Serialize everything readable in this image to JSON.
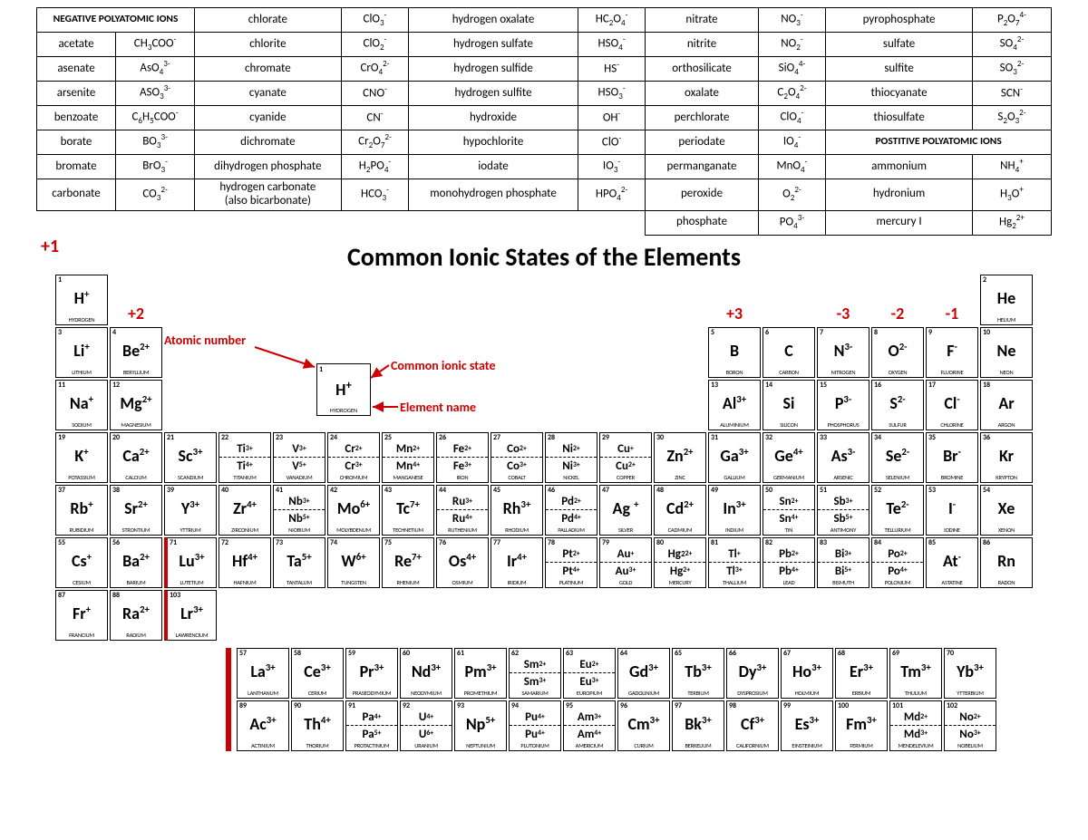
{
  "colors": {
    "accent": "#cc0000",
    "border": "#000000",
    "background": "#ffffff"
  },
  "poly_header_neg": "NEGATIVE POLYATOMIC IONS",
  "poly_header_pos": "POSTITIVE POLYATOMIC IONS",
  "poly": {
    "c1": [
      [
        "acetate",
        "CH<sub>3</sub>COO<sup>-</sup>"
      ],
      [
        "asenate",
        "AsO<sub>4</sub><sup>3-</sup>"
      ],
      [
        "arsenite",
        "ASO<sub>3</sub><sup>3-</sup>"
      ],
      [
        "benzoate",
        "C<sub>6</sub>H<sub>5</sub>COO<sup>-</sup>"
      ],
      [
        "borate",
        "BO<sub>3</sub><sup>3-</sup>"
      ],
      [
        "bromate",
        "BrO<sub>3</sub><sup>-</sup>"
      ],
      [
        "carbonate",
        "CO<sub>3</sub><sup>2-</sup>"
      ]
    ],
    "c2": [
      [
        "chlorate",
        "ClO<sub>3</sub><sup>-</sup>"
      ],
      [
        "chlorite",
        "ClO<sub>2</sub><sup>-</sup>"
      ],
      [
        "chromate",
        "CrO<sub>4</sub><sup>2-</sup>"
      ],
      [
        "cyanate",
        "CNO<sup>-</sup>"
      ],
      [
        "cyanide",
        "CN<sup>-</sup>"
      ],
      [
        "dichromate",
        "Cr<sub>2</sub>O<sub>7</sub><sup>2-</sup>"
      ],
      [
        "dihydrogen phosphate",
        "H<sub>2</sub>PO<sub>4</sub><sup>-</sup>"
      ],
      [
        "hydrogen carbonate<br>(also bicarbonate)",
        "HCO<sub>3</sub><sup>-</sup>"
      ]
    ],
    "c3": [
      [
        "hydrogen oxalate",
        "HC<sub>2</sub>O<sub>4</sub><sup>-</sup>"
      ],
      [
        "hydrogen sulfate",
        "HSO<sub>4</sub><sup>-</sup>"
      ],
      [
        "hydrogen sulfide",
        "HS<sup>-</sup>"
      ],
      [
        "hydrogen sulfite",
        "HSO<sub>3</sub><sup>-</sup>"
      ],
      [
        "hydroxide",
        "OH<sup>-</sup>"
      ],
      [
        "hypochlorite",
        "ClO<sup>-</sup>"
      ],
      [
        "iodate",
        "IO<sub>3</sub><sup>-</sup>"
      ],
      [
        "monohydrogen phosphate",
        "HPO<sub>4</sub><sup>2-</sup>"
      ]
    ],
    "c4": [
      [
        "nitrate",
        "NO<sub>3</sub><sup>-</sup>"
      ],
      [
        "nitrite",
        "NO<sub>2</sub><sup>-</sup>"
      ],
      [
        "orthosilicate",
        "SiO<sub>4</sub><sup>4-</sup>"
      ],
      [
        "oxalate",
        "C<sub>2</sub>O<sub>4</sub><sup>2-</sup>"
      ],
      [
        "perchlorate",
        "ClO<sub>4</sub><sup>-</sup>"
      ],
      [
        "periodate",
        "IO<sub>4</sub><sup>-</sup>"
      ],
      [
        "permanganate",
        "MnO<sub>4</sub><sup>-</sup>"
      ],
      [
        "peroxide",
        "O<sub>2</sub><sup>2-</sup>"
      ],
      [
        "phosphate",
        "PO<sub>4</sub><sup>3-</sup>"
      ]
    ],
    "c5": [
      [
        "pyrophosphate",
        "P<sub>2</sub>O<sub>7</sub><sup>4-</sup>"
      ],
      [
        "sulfate",
        "SO<sub>4</sub><sup>2-</sup>"
      ],
      [
        "sulfite",
        "SO<sub>3</sub><sup>2-</sup>"
      ],
      [
        "thiocyanate",
        "SCN<sup>-</sup>"
      ],
      [
        "thiosulfate",
        "S<sub>2</sub>O<sub>3</sub><sup>2-</sup>"
      ]
    ],
    "c6": [
      [
        "ammonium",
        "NH<sub>4</sub><sup>+</sup>"
      ],
      [
        "hydronium",
        "H<sub>3</sub>O<sup>+</sup>"
      ],
      [
        "mercury I",
        "Hg<sub>2</sub><sup>2+</sup>"
      ]
    ]
  },
  "title": "Common Ionic States of the Elements",
  "legend": {
    "atomic_number": "Atomic number",
    "ionic_state": "Common ionic state",
    "element_name": "Element name",
    "key_num": "1",
    "key_sym": "H<sup>+</sup>",
    "key_name": "HYDROGEN"
  },
  "group_labels": {
    "c1": "+1",
    "c2": "+2",
    "c13": "+3",
    "c15": "-3",
    "c16": "-2",
    "c17": "-1"
  },
  "elements": [
    {
      "r": 1,
      "c": 1,
      "n": "1",
      "name": "HYDROGEN",
      "ions": [
        "H<sup>+</sup>"
      ]
    },
    {
      "r": 1,
      "c": 18,
      "n": "2",
      "name": "HELIUM",
      "ions": [
        "He"
      ]
    },
    {
      "r": 2,
      "c": 1,
      "n": "3",
      "name": "LITHIUM",
      "ions": [
        "Li<sup>+</sup>"
      ]
    },
    {
      "r": 2,
      "c": 2,
      "n": "4",
      "name": "BERYLLIUM",
      "ions": [
        "Be<sup>2+</sup>"
      ]
    },
    {
      "r": 2,
      "c": 13,
      "n": "5",
      "name": "BORON",
      "ions": [
        "B"
      ]
    },
    {
      "r": 2,
      "c": 14,
      "n": "6",
      "name": "CARBON",
      "ions": [
        "C"
      ]
    },
    {
      "r": 2,
      "c": 15,
      "n": "7",
      "name": "NITROGEN",
      "ions": [
        "N<sup>3-</sup>"
      ]
    },
    {
      "r": 2,
      "c": 16,
      "n": "8",
      "name": "OXYGEN",
      "ions": [
        "O<sup>2-</sup>"
      ]
    },
    {
      "r": 2,
      "c": 17,
      "n": "9",
      "name": "FLUORINE",
      "ions": [
        "F<sup>-</sup>"
      ]
    },
    {
      "r": 2,
      "c": 18,
      "n": "10",
      "name": "NEON",
      "ions": [
        "Ne"
      ]
    },
    {
      "r": 3,
      "c": 1,
      "n": "11",
      "name": "SODIUM",
      "ions": [
        "Na<sup>+</sup>"
      ]
    },
    {
      "r": 3,
      "c": 2,
      "n": "12",
      "name": "MAGNESIUM",
      "ions": [
        "Mg<sup>2+</sup>"
      ]
    },
    {
      "r": 3,
      "c": 13,
      "n": "13",
      "name": "ALUMINIUM",
      "ions": [
        "Al<sup>3+</sup>"
      ]
    },
    {
      "r": 3,
      "c": 14,
      "n": "14",
      "name": "SILICON",
      "ions": [
        "Si"
      ]
    },
    {
      "r": 3,
      "c": 15,
      "n": "15",
      "name": "PHOSPHORUS",
      "ions": [
        "P<sup>3-</sup>"
      ]
    },
    {
      "r": 3,
      "c": 16,
      "n": "16",
      "name": "SULFUR",
      "ions": [
        "S<sup>2-</sup>"
      ]
    },
    {
      "r": 3,
      "c": 17,
      "n": "17",
      "name": "CHLORINE",
      "ions": [
        "Cl<sup>-</sup>"
      ]
    },
    {
      "r": 3,
      "c": 18,
      "n": "18",
      "name": "ARGON",
      "ions": [
        "Ar"
      ]
    },
    {
      "r": 4,
      "c": 1,
      "n": "19",
      "name": "POTASSIUM",
      "ions": [
        "K<sup>+</sup>"
      ]
    },
    {
      "r": 4,
      "c": 2,
      "n": "20",
      "name": "CALCIUM",
      "ions": [
        "Ca<sup>2+</sup>"
      ]
    },
    {
      "r": 4,
      "c": 3,
      "n": "21",
      "name": "SCANDIUM",
      "ions": [
        "Sc<sup>3+</sup>"
      ]
    },
    {
      "r": 4,
      "c": 4,
      "n": "22",
      "name": "TITANIUM",
      "ions": [
        "Ti<sup>3+</sup>",
        "Ti<sup>4+</sup>"
      ]
    },
    {
      "r": 4,
      "c": 5,
      "n": "23",
      "name": "VANADIUM",
      "ions": [
        "V<sup>3+</sup>",
        "V<sup>5+</sup>"
      ]
    },
    {
      "r": 4,
      "c": 6,
      "n": "24",
      "name": "CHROMIUM",
      "ions": [
        "Cr<sup>2+</sup>",
        "Cr<sup>3+</sup>"
      ]
    },
    {
      "r": 4,
      "c": 7,
      "n": "25",
      "name": "MANGANESE",
      "ions": [
        "Mn<sup>2+</sup>",
        "Mn<sup>4+</sup>"
      ]
    },
    {
      "r": 4,
      "c": 8,
      "n": "26",
      "name": "IRON",
      "ions": [
        "Fe<sup>2+</sup>",
        "Fe<sup>3+</sup>"
      ]
    },
    {
      "r": 4,
      "c": 9,
      "n": "27",
      "name": "COBALT",
      "ions": [
        "Co<sup>2+</sup>",
        "Co<sup>3+</sup>"
      ]
    },
    {
      "r": 4,
      "c": 10,
      "n": "28",
      "name": "NICKEL",
      "ions": [
        "Ni<sup>2+</sup>",
        "Ni<sup>3+</sup>"
      ]
    },
    {
      "r": 4,
      "c": 11,
      "n": "29",
      "name": "COPPER",
      "ions": [
        "Cu<sup>+</sup>",
        "Cu<sup>2+</sup>"
      ]
    },
    {
      "r": 4,
      "c": 12,
      "n": "30",
      "name": "ZINC",
      "ions": [
        "Zn<sup>2+</sup>"
      ]
    },
    {
      "r": 4,
      "c": 13,
      "n": "31",
      "name": "GALLIUM",
      "ions": [
        "Ga<sup>3+</sup>"
      ]
    },
    {
      "r": 4,
      "c": 14,
      "n": "32",
      "name": "GERMANIUM",
      "ions": [
        "Ge<sup>4+</sup>"
      ]
    },
    {
      "r": 4,
      "c": 15,
      "n": "33",
      "name": "ARSENIC",
      "ions": [
        "As<sup>3-</sup>"
      ]
    },
    {
      "r": 4,
      "c": 16,
      "n": "34",
      "name": "SELENIUM",
      "ions": [
        "Se<sup>2-</sup>"
      ]
    },
    {
      "r": 4,
      "c": 17,
      "n": "35",
      "name": "BROMINE",
      "ions": [
        "Br<sup>-</sup>"
      ]
    },
    {
      "r": 4,
      "c": 18,
      "n": "36",
      "name": "KRYPTON",
      "ions": [
        "Kr"
      ]
    },
    {
      "r": 5,
      "c": 1,
      "n": "37",
      "name": "RUBIDIUM",
      "ions": [
        "Rb<sup>+</sup>"
      ]
    },
    {
      "r": 5,
      "c": 2,
      "n": "38",
      "name": "STRONTIUM",
      "ions": [
        "Sr<sup>2+</sup>"
      ]
    },
    {
      "r": 5,
      "c": 3,
      "n": "39",
      "name": "YTTRIUM",
      "ions": [
        "Y<sup>3+</sup>"
      ]
    },
    {
      "r": 5,
      "c": 4,
      "n": "40",
      "name": "ZIRCONIUM",
      "ions": [
        "Zr<sup>4+</sup>"
      ]
    },
    {
      "r": 5,
      "c": 5,
      "n": "41",
      "name": "NIOBIUM",
      "ions": [
        "Nb<sup>3+</sup>",
        "Nb<sup>5+</sup>"
      ]
    },
    {
      "r": 5,
      "c": 6,
      "n": "42",
      "name": "MOLYBDENUM",
      "ions": [
        "Mo<sup>6+</sup>"
      ]
    },
    {
      "r": 5,
      "c": 7,
      "n": "43",
      "name": "TECHNETIUM",
      "ions": [
        "Tc<sup>7+</sup>"
      ]
    },
    {
      "r": 5,
      "c": 8,
      "n": "44",
      "name": "RUTHENIUM",
      "ions": [
        "Ru<sup>3+</sup>",
        "Ru<sup>4+</sup>"
      ]
    },
    {
      "r": 5,
      "c": 9,
      "n": "45",
      "name": "RHODIUM",
      "ions": [
        "Rh<sup>3+</sup>"
      ]
    },
    {
      "r": 5,
      "c": 10,
      "n": "46",
      "name": "PALLADIUM",
      "ions": [
        "Pd<sup>2+</sup>",
        "Pd<sup>4+</sup>"
      ]
    },
    {
      "r": 5,
      "c": 11,
      "n": "47",
      "name": "SILVER",
      "ions": [
        "Ag <sup>+</sup>"
      ]
    },
    {
      "r": 5,
      "c": 12,
      "n": "48",
      "name": "CADMIUM",
      "ions": [
        "Cd<sup>2+</sup>"
      ]
    },
    {
      "r": 5,
      "c": 13,
      "n": "49",
      "name": "INDIUM",
      "ions": [
        "In<sup>3+</sup>"
      ]
    },
    {
      "r": 5,
      "c": 14,
      "n": "50",
      "name": "TIN",
      "ions": [
        "Sn<sup>2+</sup>",
        "Sn<sup>4+</sup>"
      ]
    },
    {
      "r": 5,
      "c": 15,
      "n": "51",
      "name": "ANTIMONY",
      "ions": [
        "Sb<sup>3+</sup>",
        "Sb<sup>5+</sup>"
      ]
    },
    {
      "r": 5,
      "c": 16,
      "n": "52",
      "name": "TELLURIUM",
      "ions": [
        "Te<sup>2-</sup>"
      ]
    },
    {
      "r": 5,
      "c": 17,
      "n": "53",
      "name": "IODINE",
      "ions": [
        "I<sup>-</sup>"
      ]
    },
    {
      "r": 5,
      "c": 18,
      "n": "54",
      "name": "XENON",
      "ions": [
        "Xe"
      ]
    },
    {
      "r": 6,
      "c": 1,
      "n": "55",
      "name": "CESIUM",
      "ions": [
        "Cs<sup>+</sup>"
      ]
    },
    {
      "r": 6,
      "c": 2,
      "n": "56",
      "name": "BARIUM",
      "ions": [
        "Ba<sup>2+</sup>"
      ]
    },
    {
      "r": 6,
      "c": 3,
      "n": "71",
      "name": "LUTETIUM",
      "ions": [
        "Lu<sup>3+</sup>"
      ],
      "redleft": true
    },
    {
      "r": 6,
      "c": 4,
      "n": "72",
      "name": "HAFNIUM",
      "ions": [
        "Hf<sup>4+</sup>"
      ]
    },
    {
      "r": 6,
      "c": 5,
      "n": "73",
      "name": "TANTALUM",
      "ions": [
        "Ta<sup>5+</sup>"
      ]
    },
    {
      "r": 6,
      "c": 6,
      "n": "74",
      "name": "TUNGSTEN",
      "ions": [
        "W<sup>6+</sup>"
      ]
    },
    {
      "r": 6,
      "c": 7,
      "n": "75",
      "name": "RHENIUM",
      "ions": [
        "Re<sup>7+</sup>"
      ]
    },
    {
      "r": 6,
      "c": 8,
      "n": "76",
      "name": "OSMIUM",
      "ions": [
        "Os<sup>4+</sup>"
      ]
    },
    {
      "r": 6,
      "c": 9,
      "n": "77",
      "name": "IRIDIUM",
      "ions": [
        "Ir<sup>4+</sup>"
      ]
    },
    {
      "r": 6,
      "c": 10,
      "n": "78",
      "name": "PLATINUM",
      "ions": [
        "Pt<sup>2+</sup>",
        "Pt<sup>4+</sup>"
      ]
    },
    {
      "r": 6,
      "c": 11,
      "n": "79",
      "name": "GOLD",
      "ions": [
        "Au <sup>+</sup>",
        "Au <sup>3+</sup>"
      ]
    },
    {
      "r": 6,
      "c": 12,
      "n": "80",
      "name": "MERCURY",
      "ions": [
        "Hg<sub>2</sub><sup>2+</sup>",
        "Hg<sup>2+</sup>"
      ]
    },
    {
      "r": 6,
      "c": 13,
      "n": "81",
      "name": "THALLIUM",
      "ions": [
        "Tl <sup>+</sup>",
        "Tl <sup>3+</sup>"
      ]
    },
    {
      "r": 6,
      "c": 14,
      "n": "82",
      "name": "LEAD",
      "ions": [
        "Pb<sup>2+</sup>",
        "Pb<sup>4+</sup>"
      ]
    },
    {
      "r": 6,
      "c": 15,
      "n": "83",
      "name": "BISMUTH",
      "ions": [
        "Bi<sup>3+</sup>",
        "Bi<sup>5+</sup>"
      ]
    },
    {
      "r": 6,
      "c": 16,
      "n": "84",
      "name": "POLONIUM",
      "ions": [
        "Po<sup>2+</sup>",
        "Po<sup>4+</sup>"
      ]
    },
    {
      "r": 6,
      "c": 17,
      "n": "85",
      "name": "ASTATINE",
      "ions": [
        "At<sup>-</sup>"
      ]
    },
    {
      "r": 6,
      "c": 18,
      "n": "86",
      "name": "RADON",
      "ions": [
        "Rn"
      ]
    },
    {
      "r": 7,
      "c": 1,
      "n": "87",
      "name": "FRANCIUM",
      "ions": [
        "Fr<sup>+</sup>"
      ]
    },
    {
      "r": 7,
      "c": 2,
      "n": "88",
      "name": "RADIUM",
      "ions": [
        "Ra<sup>2+</sup>"
      ]
    },
    {
      "r": 7,
      "c": 3,
      "n": "103",
      "name": "LAWRENCIUM",
      "ions": [
        "Lr<sup>3+</sup>"
      ],
      "redleft": true
    }
  ],
  "f_block": [
    [
      {
        "n": "57",
        "name": "LANTHANUM",
        "ions": [
          "La<sup>3+</sup>"
        ]
      },
      {
        "n": "58",
        "name": "CERIUM",
        "ions": [
          "Ce<sup>3+</sup>"
        ]
      },
      {
        "n": "59",
        "name": "PRASEODYMIUM",
        "ions": [
          "Pr<sup>3+</sup>"
        ]
      },
      {
        "n": "60",
        "name": "NEODYMIUM",
        "ions": [
          "Nd<sup>3+</sup>"
        ]
      },
      {
        "n": "61",
        "name": "PROMETHIUM",
        "ions": [
          "Pm<sup>3+</sup>"
        ]
      },
      {
        "n": "62",
        "name": "SAMARIUM",
        "ions": [
          "Sm<sup>2+</sup>",
          "Sm<sup>3+</sup>"
        ]
      },
      {
        "n": "63",
        "name": "EUROPIUM",
        "ions": [
          "Eu<sup>2+</sup>",
          "Eu<sup>3+</sup>"
        ]
      },
      {
        "n": "64",
        "name": "GADOLINIUM",
        "ions": [
          "Gd<sup>3+</sup>"
        ]
      },
      {
        "n": "65",
        "name": "TERBIUM",
        "ions": [
          "Tb<sup>3+</sup>"
        ]
      },
      {
        "n": "66",
        "name": "DYSPROSIUM",
        "ions": [
          "Dy<sup>3+</sup>"
        ]
      },
      {
        "n": "67",
        "name": "HOLMIUM",
        "ions": [
          "Ho<sup>3+</sup>"
        ]
      },
      {
        "n": "68",
        "name": "ERBIUM",
        "ions": [
          "Er<sup>3+</sup>"
        ]
      },
      {
        "n": "69",
        "name": "THULIUM",
        "ions": [
          "Tm<sup>3+</sup>"
        ]
      },
      {
        "n": "70",
        "name": "YTTERBIUM",
        "ions": [
          "Yb<sup>3+</sup>"
        ]
      }
    ],
    [
      {
        "n": "89",
        "name": "ACTINIUM",
        "ions": [
          "Ac<sup>3+</sup>"
        ]
      },
      {
        "n": "90",
        "name": "THORIUM",
        "ions": [
          "Th<sup>4+</sup>"
        ]
      },
      {
        "n": "91",
        "name": "PROTACTINIUM",
        "ions": [
          "Pa<sup>4+</sup>",
          "Pa<sup>5+</sup>"
        ]
      },
      {
        "n": "92",
        "name": "URANIUM",
        "ions": [
          "U<sup>4+</sup>",
          "U<sup>6+</sup>"
        ]
      },
      {
        "n": "93",
        "name": "NEPTUNIUM",
        "ions": [
          "Np<sup>5+</sup>"
        ]
      },
      {
        "n": "94",
        "name": "PLUTONIUM",
        "ions": [
          "Pu<sup>4+</sup>",
          "Pu<sup>4+</sup>"
        ]
      },
      {
        "n": "95",
        "name": "AMERICIUM",
        "ions": [
          "Am<sup>3+</sup>",
          "Am<sup>4+</sup>"
        ]
      },
      {
        "n": "96",
        "name": "CURIUM",
        "ions": [
          "Cm<sup>3+</sup>"
        ]
      },
      {
        "n": "97",
        "name": "BERKELIUM",
        "ions": [
          "Bk<sup>3+</sup>"
        ]
      },
      {
        "n": "98",
        "name": "CALIFORNIUM",
        "ions": [
          "Cf<sup>3+</sup>"
        ]
      },
      {
        "n": "99",
        "name": "EINSTEINIUM",
        "ions": [
          "Es<sup>3+</sup>"
        ]
      },
      {
        "n": "100",
        "name": "FERMIUM",
        "ions": [
          "Fm<sup>3+</sup>"
        ]
      },
      {
        "n": "101",
        "name": "MENDELEVIUM",
        "ions": [
          "Md<sup>2+</sup>",
          "Md<sup>3+</sup>"
        ]
      },
      {
        "n": "102",
        "name": "NOBELIUM",
        "ions": [
          "No<sup>2+</sup>",
          "No<sup>3+</sup>"
        ]
      }
    ]
  ]
}
